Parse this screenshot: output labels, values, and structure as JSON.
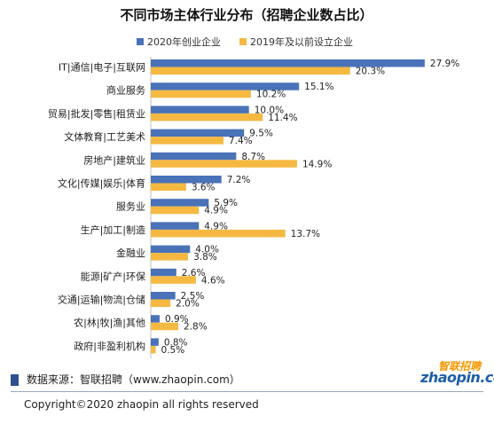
{
  "chart_data": {
    "type": "bar",
    "orientation": "horizontal",
    "title": "不同市场主体行业分布（招聘企业数占比）",
    "categories": [
      "IT|通信|电子|互联网",
      "商业服务",
      "贸易|批发|零售|租赁业",
      "文体教育|工艺美术",
      "房地产|建筑业",
      "文化|传媒|娱乐|体育",
      "服务业",
      "生产|加工|制造",
      "金融业",
      "能源|矿产|环保",
      "交通|运输|物流|仓储",
      "农|林|牧|渔|其他",
      "政府|非盈利机构"
    ],
    "series": [
      {
        "name": "2020年创业企业",
        "color": "#4a72b8",
        "values": [
          27.9,
          15.1,
          10.0,
          9.5,
          8.7,
          7.2,
          5.9,
          4.9,
          4.0,
          2.6,
          2.5,
          0.9,
          0.8
        ]
      },
      {
        "name": "2019年及以前设立企业",
        "color": "#f5b942",
        "values": [
          20.3,
          10.2,
          11.4,
          7.4,
          14.9,
          3.6,
          4.9,
          13.7,
          3.8,
          4.6,
          2.0,
          2.8,
          0.5
        ]
      }
    ],
    "value_suffix": "%",
    "xlim": [
      0,
      28
    ],
    "grid": false,
    "legend_position": "top-right"
  },
  "source": "数据来源：智联招聘（www.zhaopin.com）",
  "logo": {
    "top_text": "智联招聘",
    "bottom_text": "zhaopin.com"
  },
  "copyright": "Copyright©2020 zhaopin all rights reserved"
}
